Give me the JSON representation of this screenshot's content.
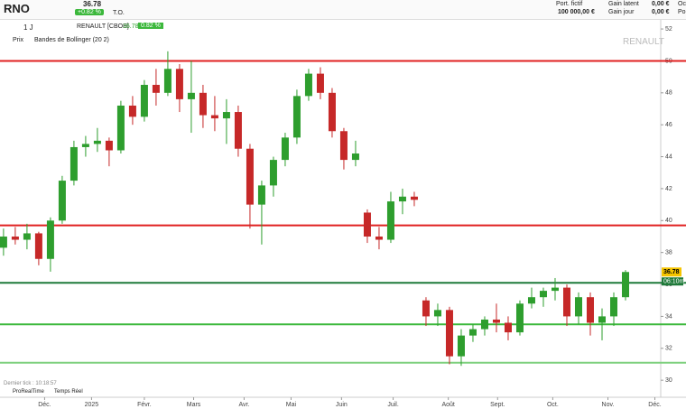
{
  "header": {
    "symbol": "RNO",
    "price": "36.78",
    "change": "+0.82 %",
    "to": "T.O.",
    "portfolio_label": "Port. fictif",
    "portfolio_value": "100 000,00 €",
    "gain_latent_label": "Gain latent",
    "gain_latent_value": "0,00 €",
    "gain_jour_label": "Gain jour",
    "gain_jour_value": "0,00 €",
    "cut1": "Oc",
    "cut2": "Po"
  },
  "toolbar": {
    "interval": "1 J",
    "instrument": "RENAULT [CBOE]",
    "price": "36.78",
    "change": "0.82 %"
  },
  "legend": {
    "price": "Prix",
    "bollinger": "Bandes de Bollinger (20 2)"
  },
  "watermark": "RENAULT",
  "footer": {
    "last_tick": "Dernier tick : 10:18:57",
    "provider": "ProRealTime",
    "realtime": "Temps Réel"
  },
  "chart_data": {
    "type": "candlestick",
    "up_color": "#2e9e2e",
    "down_color": "#c62828",
    "x": [
      0,
      1,
      2,
      3,
      4,
      5,
      6,
      7,
      8,
      9,
      10,
      11,
      12,
      13,
      14,
      15,
      16,
      17,
      18,
      19,
      20,
      21,
      22,
      23,
      24,
      25,
      26,
      27,
      28,
      29,
      30,
      31,
      32,
      33,
      34,
      35,
      36,
      37,
      38,
      39,
      40,
      41,
      42,
      43,
      44,
      45,
      46,
      47,
      48,
      49,
      50,
      51,
      52,
      53
    ],
    "open": [
      38.3,
      39,
      38.8,
      39.2,
      37.6,
      40,
      42.5,
      44.6,
      44.8,
      45,
      44.4,
      47.2,
      46.5,
      48.5,
      48,
      49.5,
      47.6,
      48,
      46.6,
      46.4,
      46.8,
      44.5,
      41,
      42.2,
      43.8,
      45.2,
      47.8,
      49.2,
      48,
      45.6,
      43.8,
      40.5,
      39,
      38.8,
      41.2,
      41.5,
      35,
      34,
      34.4,
      31.5,
      32.8,
      33.2,
      33.8,
      33.6,
      33,
      34.8,
      35.2,
      35.6,
      35.8,
      34,
      35.2,
      33.6,
      34,
      35.2
    ],
    "high": [
      39.5,
      39.6,
      39.8,
      39.3,
      40.2,
      42.8,
      45,
      45.3,
      45.8,
      45.2,
      47.5,
      47.8,
      48.8,
      49.5,
      50.6,
      49.8,
      50,
      48.5,
      47.8,
      47.6,
      47.2,
      44.8,
      42.5,
      44,
      45.5,
      48.2,
      49.5,
      49.6,
      48.3,
      45.8,
      45,
      40.7,
      39.6,
      41.8,
      42,
      41.8,
      35.2,
      34.8,
      34.6,
      33.2,
      33.5,
      34,
      34.8,
      34,
      35,
      35.8,
      35.8,
      36.4,
      36,
      35.5,
      35.5,
      34.5,
      35.5,
      36.9
    ],
    "low": [
      37.8,
      38.5,
      38.2,
      37.2,
      36.8,
      39.8,
      42.2,
      44,
      44.3,
      43.4,
      44.2,
      46,
      46.2,
      47.2,
      47.8,
      46.8,
      45.5,
      45.8,
      45.6,
      44.8,
      44,
      39.5,
      38.5,
      41.5,
      43.4,
      44.8,
      47.5,
      47.6,
      45.2,
      43.2,
      43.4,
      38.6,
      38.2,
      38.6,
      40.4,
      40.9,
      33.4,
      33.4,
      31,
      30.9,
      32.4,
      32.8,
      33,
      32.5,
      32.8,
      34.5,
      34.6,
      35,
      33.4,
      33.5,
      32.8,
      32.5,
      33.4,
      35
    ],
    "close": [
      39,
      38.8,
      39.2,
      37.6,
      40,
      42.5,
      44.6,
      44.8,
      45,
      44.4,
      47.2,
      46.5,
      48.5,
      48,
      49.5,
      47.6,
      48,
      46.6,
      46.4,
      46.8,
      44.5,
      41,
      42.2,
      43.8,
      45.2,
      47.8,
      49.2,
      48,
      45.6,
      43.8,
      44.2,
      39,
      38.8,
      41.2,
      41.5,
      41.3,
      34,
      34.4,
      31.5,
      32.8,
      33.2,
      33.8,
      33.6,
      33,
      34.8,
      35.2,
      35.6,
      35.8,
      34,
      35.2,
      33.6,
      34,
      35.2,
      36.78
    ],
    "xlim": [
      -0.3,
      56
    ],
    "xticks": [
      {
        "value": 3.5,
        "label": "Déc."
      },
      {
        "value": 7.5,
        "label": "2025"
      },
      {
        "value": 12,
        "label": "Févr."
      },
      {
        "value": 16.2,
        "label": "Mars"
      },
      {
        "value": 20.5,
        "label": "Avr."
      },
      {
        "value": 24.5,
        "label": "Mai"
      },
      {
        "value": 28.8,
        "label": "Juin"
      },
      {
        "value": 33.2,
        "label": "Juil."
      },
      {
        "value": 37.9,
        "label": "Août"
      },
      {
        "value": 42.1,
        "label": "Sept."
      },
      {
        "value": 46.8,
        "label": "Oct."
      },
      {
        "value": 51.5,
        "label": "Nov."
      },
      {
        "value": 55.5,
        "label": "Déc."
      }
    ],
    "ylim": [
      29.5,
      52.4
    ],
    "yticks": [
      30,
      32,
      34,
      36,
      38,
      40,
      42,
      44,
      46,
      48,
      50,
      52
    ],
    "levels": [
      {
        "value": 50,
        "color": "#e02020"
      },
      {
        "value": 39.7,
        "color": "#e02020"
      },
      {
        "value": 36.1,
        "color": "#1f7a3a"
      },
      {
        "value": 33.5,
        "color": "#3cb83c"
      },
      {
        "value": 31.1,
        "color": "#7fd07f"
      }
    ],
    "last": 36.78,
    "countdown": "06:10m"
  }
}
